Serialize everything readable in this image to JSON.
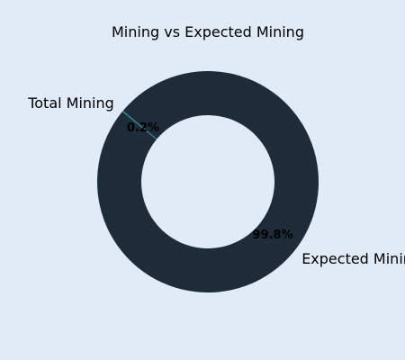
{
  "chart_data": {
    "type": "pie",
    "style": "donut",
    "title": "Mining vs Expected Mining",
    "categories": [
      "Total Mining",
      "Expected Mining"
    ],
    "values": [
      0.2,
      99.8
    ],
    "percent_labels": [
      "0.2%",
      "99.8%"
    ],
    "colors": [
      "#2a7f8a",
      "#1e2b38"
    ],
    "background": "#e0ebf7",
    "legend": "none"
  }
}
